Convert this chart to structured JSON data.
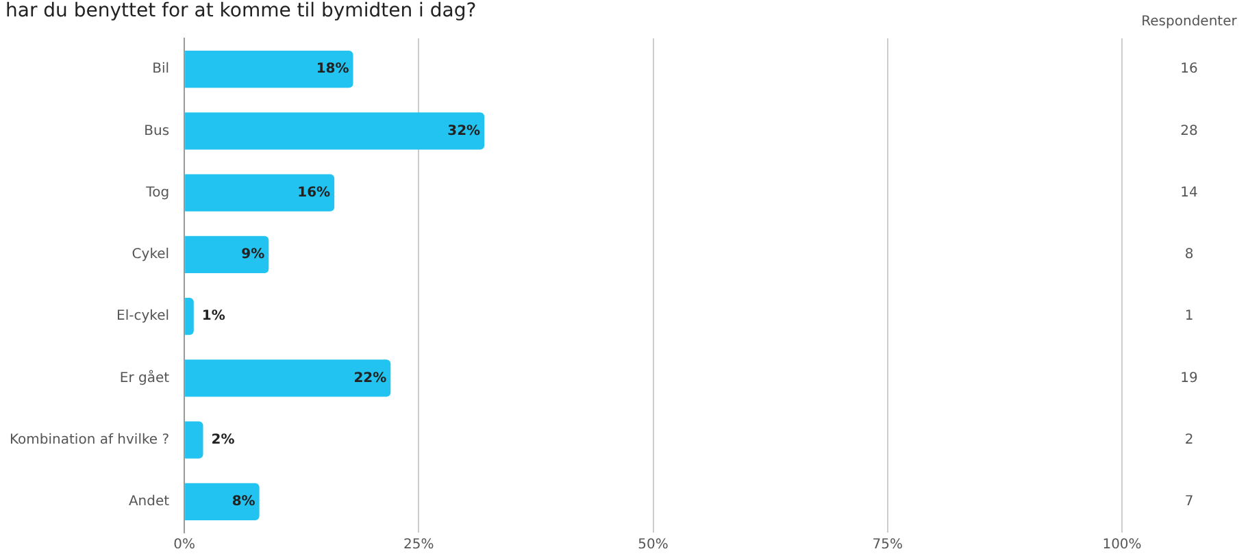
{
  "chart_data": {
    "type": "bar",
    "orientation": "horizontal",
    "title": "har du benyttet for at komme til bymidten i dag?",
    "categories": [
      "Bil",
      "Bus",
      "Tog",
      "Cykel",
      "El-cykel",
      "Er gået",
      "Kombination af hvilke ?",
      "Andet"
    ],
    "values": [
      18,
      32,
      16,
      9,
      1,
      22,
      2,
      8
    ],
    "value_labels": [
      "18%",
      "32%",
      "16%",
      "9%",
      "1%",
      "22%",
      "2%",
      "8%"
    ],
    "color": "#22c3f0",
    "xlim": [
      0,
      100
    ],
    "xticks": [
      {
        "value": 0,
        "label": "0%"
      },
      {
        "value": 25,
        "label": "25%"
      },
      {
        "value": 50,
        "label": "50%"
      },
      {
        "value": 75,
        "label": "75%"
      },
      {
        "value": 100,
        "label": "100%"
      }
    ],
    "grid": "x",
    "legend": false,
    "annotations": [
      "Respondenter",
      "16",
      "28",
      "14",
      "8",
      "1",
      "19",
      "2",
      "7"
    ]
  }
}
